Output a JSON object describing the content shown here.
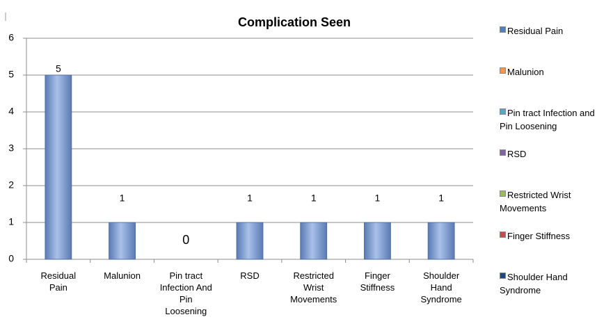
{
  "chart_data": {
    "type": "bar",
    "title": "Complication Seen",
    "categories": [
      "Residual Pain",
      "Malunion",
      "Pin tract Infection And Pin Loosening",
      "RSD",
      "Restricted Wrist Movements",
      "Finger Stiffness",
      "Shoulder Hand Syndrome"
    ],
    "values": [
      5,
      1,
      0,
      1,
      1,
      1,
      1
    ],
    "color": "#7b9bd0",
    "ylim": [
      0,
      6
    ],
    "yticks": [
      0,
      1,
      2,
      3,
      4,
      5,
      6
    ],
    "grid": true,
    "legend_position": "right",
    "legend": [
      {
        "name": "Residual Pain",
        "color": "#4f81bd"
      },
      {
        "name": "Malunion",
        "color": "#f79646"
      },
      {
        "name": "Pin tract Infection and Pin Loosening",
        "color": "#4bacc6"
      },
      {
        "name": "RSD",
        "color": "#8064a2"
      },
      {
        "name": "Restricted Wrist Movements",
        "color": "#9bbb59"
      },
      {
        "name": "Finger Stiffness",
        "color": "#c0504d"
      },
      {
        "name": "Shoulder Hand Syndrome",
        "color": "#1f497d"
      }
    ]
  }
}
